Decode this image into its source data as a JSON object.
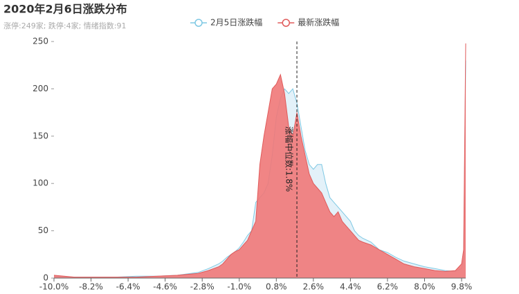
{
  "chart_data": {
    "type": "area",
    "title": "2020年2月6日涨跌分布",
    "subtitle": "涨停:249家; 跌停:4家; 情绪指数:91",
    "x": [
      -10,
      -9,
      -8,
      -7,
      -6,
      -5,
      -4,
      -3,
      -2.5,
      -2,
      -1.8,
      -1.6,
      -1.4,
      -1.2,
      -1.0,
      -0.8,
      -0.6,
      -0.4,
      -0.2,
      0,
      0.2,
      0.4,
      0.6,
      0.8,
      1.0,
      1.2,
      1.4,
      1.6,
      1.8,
      2.0,
      2.2,
      2.4,
      2.6,
      2.8,
      3.0,
      3.2,
      3.4,
      3.6,
      3.8,
      4.0,
      4.2,
      4.4,
      4.6,
      4.8,
      5.0,
      5.4,
      5.8,
      6.2,
      6.6,
      7.0,
      7.5,
      8.0,
      8.5,
      9.0,
      9.5,
      9.8,
      9.9,
      10.0
    ],
    "series": [
      {
        "name": "2月5日涨跌幅",
        "color": "#7ec8e3",
        "fill": "#dcedf7",
        "values": [
          2,
          1,
          1,
          1,
          2,
          2,
          3,
          6,
          10,
          15,
          18,
          22,
          25,
          28,
          32,
          38,
          45,
          50,
          80,
          85,
          90,
          100,
          130,
          170,
          190,
          200,
          195,
          200,
          185,
          160,
          135,
          120,
          115,
          120,
          120,
          100,
          85,
          80,
          75,
          70,
          65,
          60,
          50,
          45,
          42,
          38,
          30,
          27,
          22,
          18,
          15,
          12,
          10,
          8,
          7,
          10,
          20,
          230
        ]
      },
      {
        "name": "最新涨跌幅",
        "color": "#e05a5a",
        "fill": "#f07878",
        "values": [
          3,
          1,
          1,
          1,
          1,
          2,
          3,
          5,
          8,
          12,
          15,
          20,
          25,
          28,
          30,
          35,
          40,
          50,
          60,
          120,
          150,
          175,
          200,
          205,
          215,
          195,
          160,
          150,
          175,
          150,
          130,
          110,
          100,
          95,
          90,
          80,
          70,
          65,
          70,
          60,
          55,
          50,
          45,
          40,
          38,
          35,
          30,
          25,
          20,
          15,
          12,
          10,
          8,
          7,
          8,
          15,
          30,
          248
        ]
      }
    ],
    "xlim": [
      -10,
      10
    ],
    "xticks": [
      {
        "value": -10,
        "label": "-10.0%"
      },
      {
        "value": -8.2,
        "label": "-8.2%"
      },
      {
        "value": -6.4,
        "label": "-6.4%"
      },
      {
        "value": -4.6,
        "label": "-4.6%"
      },
      {
        "value": -2.8,
        "label": "-2.8%"
      },
      {
        "value": -1,
        "label": "-1.0%"
      },
      {
        "value": 0.8,
        "label": "0.8%"
      },
      {
        "value": 2.6,
        "label": "2.6%"
      },
      {
        "value": 4.4,
        "label": "4.4%"
      },
      {
        "value": 6.2,
        "label": "6.2%"
      },
      {
        "value": 8,
        "label": "8.0%"
      },
      {
        "value": 9.8,
        "label": "9.8%"
      }
    ],
    "ylim": [
      0,
      250
    ],
    "yticks": [
      0,
      50,
      100,
      150,
      200,
      250
    ],
    "median": {
      "value": 1.8,
      "label": "涨幅中位数:1.8%"
    }
  }
}
